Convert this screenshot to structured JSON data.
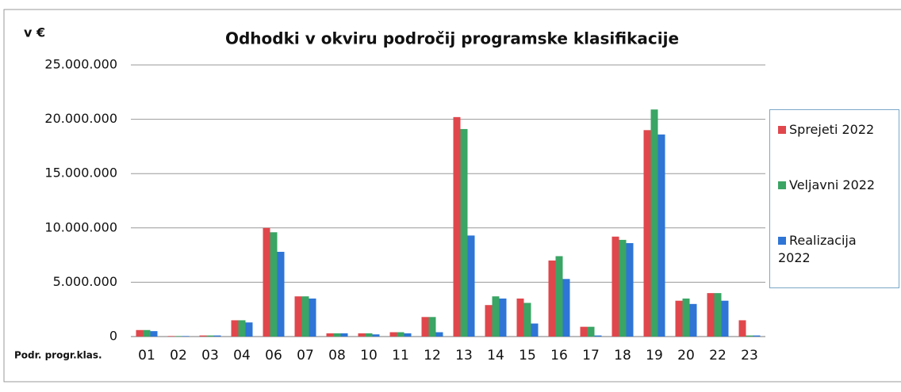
{
  "chart_data": {
    "type": "bar",
    "title": "Odhodki v okviru področij programske klasifikacije",
    "y_axis_label": "v €",
    "x_axis_label": "Podr. progr.klas.",
    "categories": [
      "01",
      "02",
      "03",
      "04",
      "06",
      "07",
      "08",
      "10",
      "11",
      "12",
      "13",
      "14",
      "15",
      "16",
      "17",
      "18",
      "19",
      "20",
      "22",
      "23"
    ],
    "series": [
      {
        "name": "Sprejeti 2022",
        "color": "#e0474c",
        "values": [
          600000,
          50000,
          100000,
          1500000,
          10000000,
          3700000,
          300000,
          300000,
          400000,
          1800000,
          20200000,
          2900000,
          3500000,
          7000000,
          900000,
          9200000,
          19000000,
          3300000,
          4000000,
          1500000
        ]
      },
      {
        "name": "Veljavni 2022",
        "color": "#3aa564",
        "values": [
          600000,
          50000,
          100000,
          1500000,
          9600000,
          3700000,
          300000,
          300000,
          400000,
          1800000,
          19100000,
          3700000,
          3100000,
          7400000,
          900000,
          8900000,
          20900000,
          3500000,
          4000000,
          100000
        ]
      },
      {
        "name": "Realizacija 2022",
        "color": "#2e75d6",
        "values": [
          500000,
          50000,
          100000,
          1300000,
          7800000,
          3500000,
          300000,
          200000,
          300000,
          400000,
          9300000,
          3500000,
          1200000,
          5300000,
          100000,
          8600000,
          18600000,
          3000000,
          3300000,
          100000
        ]
      }
    ],
    "ylim": [
      0,
      25000000
    ],
    "yticks": [
      0,
      {
        "value": 5000000,
        "label": "5.000.000"
      },
      {
        "value": 10000000,
        "label": "10.000.000"
      },
      {
        "value": 15000000,
        "label": "15.000.000"
      },
      {
        "value": 20000000,
        "label": "20.000.000"
      },
      {
        "value": 25000000,
        "label": "25.000.000"
      }
    ],
    "grid": true,
    "legend": "right"
  }
}
